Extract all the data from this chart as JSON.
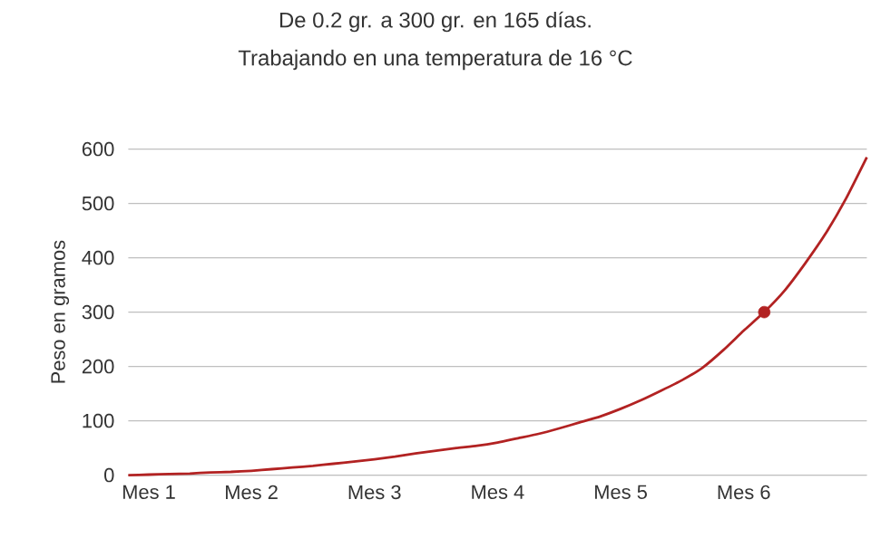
{
  "chart_data": {
    "type": "line",
    "title": "De 0.2 gr. a 300 gr. en 165 días.",
    "subtitle": "Trabajando en una temperatura de 16 °C",
    "ylabel": "Peso en gramos",
    "categories": [
      null,
      "Mes 1",
      null,
      null,
      null,
      null,
      "Mes 2",
      null,
      null,
      null,
      null,
      null,
      "Mes 3",
      null,
      null,
      null,
      null,
      null,
      "Mes 4",
      null,
      null,
      null,
      null,
      null,
      "Mes 5",
      null,
      null,
      null,
      null,
      null,
      "Mes 6",
      null,
      null,
      null,
      null,
      null,
      null
    ],
    "ylim": [
      0,
      600
    ],
    "yticks": [
      0,
      100,
      200,
      300,
      400,
      500,
      600
    ],
    "grid": "y",
    "series": [
      {
        "color": "#b22222",
        "values": [
          0,
          1,
          2,
          3,
          5,
          6,
          8,
          11,
          14,
          17,
          21,
          25,
          29,
          34,
          40,
          45,
          50,
          54,
          60,
          68,
          76,
          86,
          97,
          108,
          122,
          138,
          156,
          175,
          198,
          230,
          266,
          300,
          340,
          390,
          445,
          510,
          585
        ]
      },
      {
        "type": "scatter",
        "color": "#b22222",
        "marker": "circle",
        "values": [
          null,
          null,
          null,
          null,
          null,
          null,
          null,
          null,
          null,
          null,
          null,
          null,
          null,
          null,
          null,
          null,
          null,
          null,
          null,
          null,
          null,
          null,
          null,
          null,
          null,
          null,
          null,
          null,
          null,
          null,
          null,
          300,
          null,
          null,
          null,
          null,
          null
        ]
      }
    ]
  }
}
